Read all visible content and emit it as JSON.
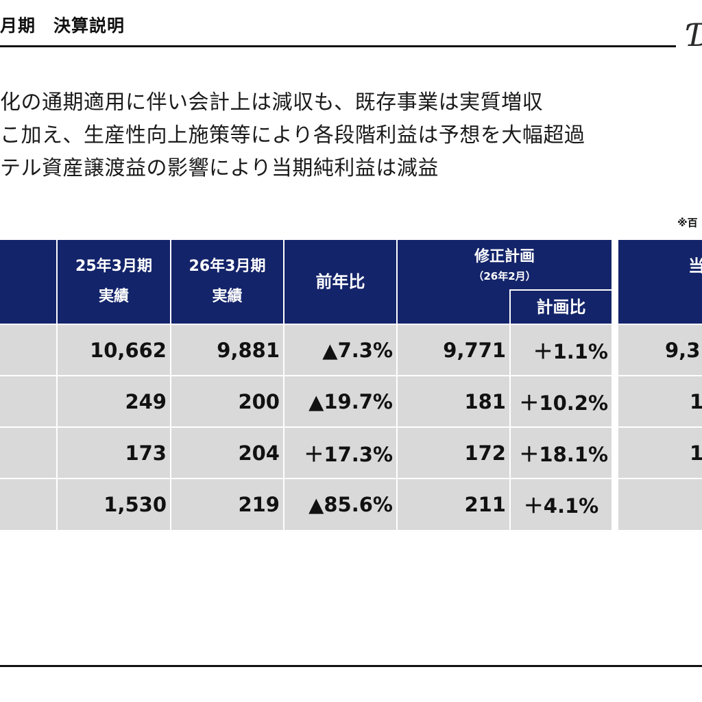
{
  "header": {
    "title_period": "月期",
    "title_main": "決算説明"
  },
  "logo": {
    "glyph": "Ɗ"
  },
  "summary": {
    "lines": [
      "化の通期適用に伴い会計上は減収も、既存事業は実質増収",
      "こ加え、生産性向上施策等により各段階利益は予想を大幅超過",
      "テル資産譲渡益の影響により当期純利益は減益"
    ]
  },
  "unit_note": "※百",
  "table": {
    "headers": {
      "fy25": {
        "line1": "25年3月期",
        "line2": "実績"
      },
      "fy26": {
        "line1": "26年3月期",
        "line2": "実績"
      },
      "yoy": "前年比",
      "revised_plan": {
        "line1": "修正計画",
        "line2": "（26年2月）"
      },
      "vs_plan": "計画比",
      "initial_plan_partial": "当"
    },
    "rows": [
      {
        "fy25": "10,662",
        "fy26": "9,881",
        "yoy": "▲7.3%",
        "plan": "9,771",
        "vs_plan": "＋1.1%",
        "initial_partial": "9,3"
      },
      {
        "fy25": "249",
        "fy26": "200",
        "yoy": "▲19.7%",
        "plan": "181",
        "vs_plan": "＋10.2%",
        "initial_partial": "1"
      },
      {
        "fy25": "173",
        "fy26": "204",
        "yoy": "＋17.3%",
        "plan": "172",
        "vs_plan": "＋18.1%",
        "initial_partial": "1"
      },
      {
        "fy25": "1,530",
        "fy26": "219",
        "yoy": "▲85.6%",
        "plan": "211",
        "vs_plan": "＋4.1%",
        "initial_partial": ""
      }
    ]
  }
}
